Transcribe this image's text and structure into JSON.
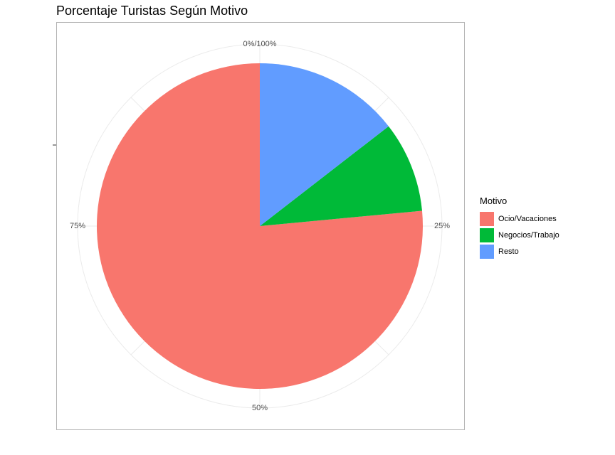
{
  "chart_data": {
    "type": "pie",
    "title": "Porcentaje Turistas Según Motivo",
    "legend": {
      "title": "Motivo",
      "position": "right"
    },
    "categories": [
      "Ocio/Vacaciones",
      "Negocios/Trabajo",
      "Resto"
    ],
    "values": [
      76.5,
      9.0,
      14.5
    ],
    "colors": [
      "#F8766D",
      "#00BA38",
      "#619CFF"
    ],
    "tick_labels": [
      "0%/100%",
      "25%",
      "50%",
      "75%"
    ],
    "grid": true
  }
}
